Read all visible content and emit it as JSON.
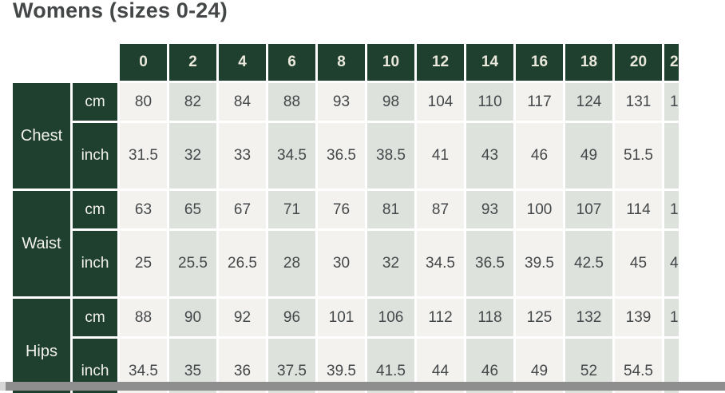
{
  "title": "Womens (sizes 0-24)",
  "table": {
    "size_headers": [
      "0",
      "2",
      "4",
      "6",
      "8",
      "10",
      "12",
      "14",
      "16",
      "18",
      "20"
    ],
    "clipped_size_header": "2",
    "groups": [
      "Chest",
      "Waist",
      "Hips"
    ],
    "rows": [
      {
        "unit": "cm",
        "values": [
          "80",
          "82",
          "84",
          "88",
          "93",
          "98",
          "104",
          "110",
          "117",
          "124",
          "131"
        ],
        "clipped": "1"
      },
      {
        "unit": "inch",
        "values": [
          "31.5",
          "32",
          "33",
          "34.5",
          "36.5",
          "38.5",
          "41",
          "43",
          "46",
          "49",
          "51.5"
        ],
        "clipped": ""
      },
      {
        "unit": "cm",
        "values": [
          "63",
          "65",
          "67",
          "71",
          "76",
          "81",
          "87",
          "93",
          "100",
          "107",
          "114"
        ],
        "clipped": "1"
      },
      {
        "unit": "inch",
        "values": [
          "25",
          "25.5",
          "26.5",
          "28",
          "30",
          "32",
          "34.5",
          "36.5",
          "39.5",
          "42.5",
          "45"
        ],
        "clipped": "4"
      },
      {
        "unit": "cm",
        "values": [
          "88",
          "90",
          "92",
          "96",
          "101",
          "106",
          "112",
          "118",
          "125",
          "132",
          "139"
        ],
        "clipped": "1"
      },
      {
        "unit": "inch",
        "values": [
          "34.5",
          "35",
          "36",
          "37.5",
          "39.5",
          "41.5",
          "44",
          "46",
          "49",
          "52",
          "54.5"
        ],
        "clipped": ""
      }
    ]
  },
  "colors": {
    "header_green": "#20402f",
    "cell_light": "#f3f2ee",
    "cell_shaded": "#dde2dd",
    "title_text": "#444748",
    "cell_text": "#45484a",
    "header_text": "#eae9dc",
    "label_text": "#f3f2ea",
    "scrollbar_track": "#d7d7d7",
    "scrollbar_thumb": "#8e8e8e"
  }
}
